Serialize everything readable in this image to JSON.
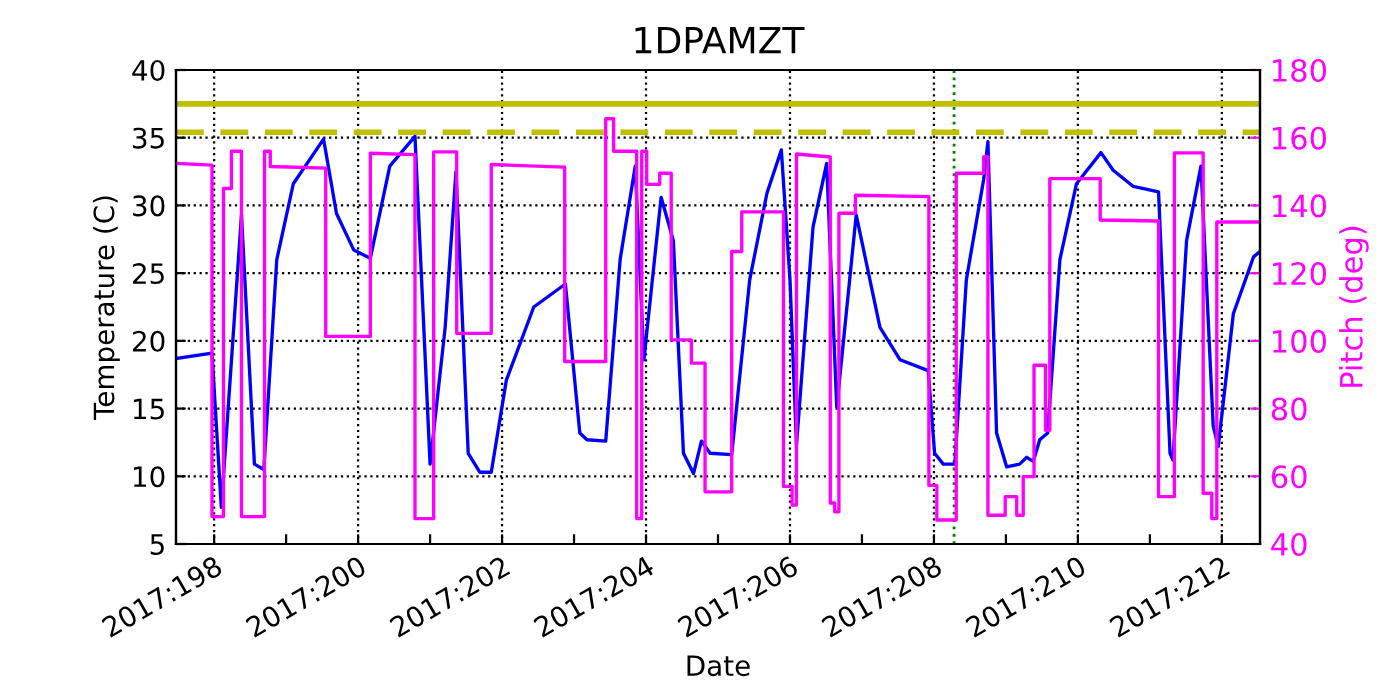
{
  "chart_data": {
    "type": "line",
    "title": "1DPAMZT",
    "xlabel": "Date",
    "ylabel": "Temperature (C)",
    "y2label": "Pitch (deg)",
    "xlim": [
      "2017-07-16T11:17",
      "2017-07-31T12:43"
    ],
    "xticks": [
      {
        "value": "2017-07-17",
        "label": "2017:198"
      },
      {
        "value": "2017-07-18",
        "label": null
      },
      {
        "value": "2017-07-19",
        "label": "2017:200"
      },
      {
        "value": "2017-07-20",
        "label": null
      },
      {
        "value": "2017-07-21",
        "label": "2017:202"
      },
      {
        "value": "2017-07-22",
        "label": null
      },
      {
        "value": "2017-07-23",
        "label": "2017:204"
      },
      {
        "value": "2017-07-24",
        "label": null
      },
      {
        "value": "2017-07-25",
        "label": "2017:206"
      },
      {
        "value": "2017-07-26",
        "label": null
      },
      {
        "value": "2017-07-27",
        "label": "2017:208"
      },
      {
        "value": "2017-07-28",
        "label": null
      },
      {
        "value": "2017-07-29",
        "label": "2017:210"
      },
      {
        "value": "2017-07-30",
        "label": null
      },
      {
        "value": "2017-07-31",
        "label": "2017:212"
      }
    ],
    "ylim": [
      5,
      40
    ],
    "yticks": [
      5,
      10,
      15,
      20,
      25,
      30,
      35,
      40
    ],
    "y2lim": [
      40,
      180
    ],
    "y2ticks": [
      40,
      60,
      80,
      100,
      120,
      140,
      160,
      180
    ],
    "grid": true,
    "legend": false,
    "ref_lines": [
      {
        "axis": "y",
        "value": 37.5,
        "color": "#bfbf00",
        "line_style": "solid"
      },
      {
        "axis": "y",
        "value": 35.4,
        "color": "#bfbf00",
        "line_style": "dashed"
      },
      {
        "axis": "x",
        "value": "2017-07-27T06:43",
        "color": "#008000",
        "line_style": "dotted"
      }
    ],
    "series": [
      {
        "color": "#0000ff",
        "axis": "y",
        "x": [
          "2017-07-16T11:31",
          "2017-07-16T23:17",
          "2017-07-17T02:24",
          "2017-07-17T09:07",
          "2017-07-17T13:26",
          "2017-07-17T16:34",
          "2017-07-17T20:53",
          "2017-07-18T02:24",
          "2017-07-18T12:29",
          "2017-07-18T16:48",
          "2017-07-18T22:34",
          "2017-07-19T04:05",
          "2017-07-19T10:34",
          "2017-07-19T18:58",
          "2017-07-20T00:00",
          "2017-07-20T05:02",
          "2017-07-20T08:38",
          "2017-07-20T12:43",
          "2017-07-20T16:34",
          "2017-07-20T20:24",
          "2017-07-21T01:26",
          "2017-07-21T10:34",
          "2017-07-21T21:07",
          "2017-07-22T01:55",
          "2017-07-22T04:19",
          "2017-07-22T10:34",
          "2017-07-22T15:22",
          "2017-07-22T20:24",
          "2017-07-22T23:17",
          "2017-07-23T05:02",
          "2017-07-23T09:07",
          "2017-07-23T12:29",
          "2017-07-23T15:50",
          "2017-07-23T18:29",
          "2017-07-23T21:22",
          "2017-07-24T04:34",
          "2017-07-24T10:34",
          "2017-07-24T16:19",
          "2017-07-24T21:07",
          "2017-07-25T00:00",
          "2017-07-25T02:10",
          "2017-07-25T07:41",
          "2017-07-25T12:14",
          "2017-07-25T15:36",
          "2017-07-25T22:05",
          "2017-07-26T06:00",
          "2017-07-26T12:43",
          "2017-07-26T22:05",
          "2017-07-27T00:14",
          "2017-07-27T03:07",
          "2017-07-27T06:58",
          "2017-07-27T10:48",
          "2017-07-27T16:34",
          "2017-07-27T18:00",
          "2017-07-27T20:53",
          "2017-07-28T00:14",
          "2017-07-28T04:34",
          "2017-07-28T06:58",
          "2017-07-28T09:07",
          "2017-07-28T11:17",
          "2017-07-28T13:55",
          "2017-07-28T18:00",
          "2017-07-28T23:31",
          "2017-07-29T07:41",
          "2017-07-29T11:46",
          "2017-07-29T18:29",
          "2017-07-30T02:53",
          "2017-07-30T06:43",
          "2017-07-30T07:41",
          "2017-07-30T12:14",
          "2017-07-30T17:02",
          "2017-07-30T21:07",
          "2017-07-30T22:48",
          "2017-07-31T03:50",
          "2017-07-31T10:34",
          "2017-07-31T12:43"
        ],
        "values": [
          18.7,
          19.1,
          7.7,
          29.3,
          10.9,
          10.5,
          26.0,
          31.6,
          34.9,
          29.4,
          26.7,
          26.1,
          32.9,
          35.1,
          10.9,
          21.0,
          32.5,
          11.7,
          10.3,
          10.3,
          17.1,
          22.5,
          24.2,
          13.2,
          12.7,
          12.6,
          26.0,
          32.9,
          18.6,
          30.6,
          27.4,
          11.7,
          10.2,
          12.6,
          11.7,
          11.6,
          24.5,
          30.9,
          34.1,
          24.5,
          12.3,
          28.4,
          33.1,
          15.1,
          29.3,
          21.0,
          18.6,
          17.8,
          11.7,
          10.9,
          10.9,
          24.5,
          31.9,
          34.7,
          13.2,
          10.7,
          10.9,
          11.4,
          11.1,
          12.7,
          13.2,
          26.0,
          31.6,
          33.9,
          32.6,
          31.4,
          31.0,
          11.7,
          11.2,
          27.4,
          32.9,
          13.7,
          12.2,
          22.0,
          26.2,
          26.6
        ]
      },
      {
        "color": "#ff00ff",
        "axis": "y2",
        "x": [
          "2017-07-16T11:31",
          "2017-07-16T23:17",
          "2017-07-16T23:17",
          "2017-07-17T03:07",
          "2017-07-17T03:07",
          "2017-07-17T05:46",
          "2017-07-17T05:46",
          "2017-07-17T09:07",
          "2017-07-17T09:07",
          "2017-07-17T16:48",
          "2017-07-17T16:48",
          "2017-07-17T18:43",
          "2017-07-17T18:43",
          "2017-07-18T13:12",
          "2017-07-18T13:12",
          "2017-07-19T04:05",
          "2017-07-19T04:05",
          "2017-07-19T18:58",
          "2017-07-19T18:58",
          "2017-07-20T01:12",
          "2017-07-20T01:12",
          "2017-07-20T08:53",
          "2017-07-20T08:53",
          "2017-07-20T20:24",
          "2017-07-20T20:24",
          "2017-07-21T20:53",
          "2017-07-21T20:53",
          "2017-07-22T10:34",
          "2017-07-22T10:34",
          "2017-07-22T13:12",
          "2017-07-22T13:12",
          "2017-07-22T20:53",
          "2017-07-22T20:53",
          "2017-07-22T22:34",
          "2017-07-22T22:34",
          "2017-07-23T00:14",
          "2017-07-23T00:14",
          "2017-07-23T04:34",
          "2017-07-23T04:34",
          "2017-07-23T08:24",
          "2017-07-23T08:24",
          "2017-07-23T15:07",
          "2017-07-23T15:07",
          "2017-07-23T19:41",
          "2017-07-23T19:41",
          "2017-07-24T04:34",
          "2017-07-24T04:34",
          "2017-07-24T07:55",
          "2017-07-24T07:55",
          "2017-07-24T21:50",
          "2017-07-24T21:50",
          "2017-07-25T00:43",
          "2017-07-25T00:43",
          "2017-07-25T02:10",
          "2017-07-25T02:10",
          "2017-07-25T13:26",
          "2017-07-25T13:26",
          "2017-07-25T14:53",
          "2017-07-25T14:53",
          "2017-07-25T16:19",
          "2017-07-25T16:19",
          "2017-07-25T21:50",
          "2017-07-25T21:50",
          "2017-07-26T22:19",
          "2017-07-26T22:19",
          "2017-07-27T00:58",
          "2017-07-27T00:58",
          "2017-07-27T07:26",
          "2017-07-27T07:26",
          "2017-07-27T16:34",
          "2017-07-27T16:34",
          "2017-07-27T18:00",
          "2017-07-27T18:00",
          "2017-07-27T23:46",
          "2017-07-27T23:46",
          "2017-07-28T03:36",
          "2017-07-28T03:36",
          "2017-07-28T05:46",
          "2017-07-28T05:46",
          "2017-07-28T09:22",
          "2017-07-28T09:22",
          "2017-07-28T13:12",
          "2017-07-28T13:12",
          "2017-07-28T14:38",
          "2017-07-28T14:38",
          "2017-07-29T07:26",
          "2017-07-29T07:26",
          "2017-07-30T02:53",
          "2017-07-30T02:53",
          "2017-07-30T08:10",
          "2017-07-30T08:10",
          "2017-07-30T17:46",
          "2017-07-30T17:46",
          "2017-07-30T20:38",
          "2017-07-30T20:38",
          "2017-07-30T22:19",
          "2017-07-30T22:19",
          "2017-07-31T12:43"
        ],
        "values": [
          152.4,
          151.9,
          48.1,
          48.1,
          145.0,
          145.0,
          156.0,
          156.0,
          48.1,
          48.1,
          156.0,
          156.0,
          151.5,
          151.0,
          101.3,
          101.3,
          155.4,
          155.0,
          47.5,
          47.5,
          155.8,
          155.8,
          102.2,
          102.2,
          152.1,
          151.3,
          93.9,
          93.9,
          165.6,
          165.6,
          156.0,
          156.0,
          47.5,
          47.5,
          156.0,
          156.0,
          146.2,
          146.2,
          149.5,
          149.5,
          100.3,
          100.3,
          93.4,
          93.4,
          55.4,
          55.4,
          126.4,
          126.4,
          138.1,
          138.1,
          57.0,
          57.0,
          51.5,
          51.5,
          155.2,
          154.3,
          52.1,
          52.1,
          49.5,
          49.5,
          137.7,
          137.7,
          143.0,
          142.6,
          57.3,
          57.3,
          47.1,
          47.1,
          149.5,
          149.5,
          154.4,
          154.4,
          48.5,
          48.5,
          54.0,
          54.0,
          48.5,
          48.5,
          59.9,
          59.9,
          92.8,
          92.8,
          73.6,
          73.6,
          147.9,
          147.9,
          135.7,
          135.4,
          54.0,
          54.0,
          155.5,
          155.5,
          55.0,
          55.0,
          47.5,
          47.5,
          135.1,
          135.1
        ]
      }
    ]
  }
}
